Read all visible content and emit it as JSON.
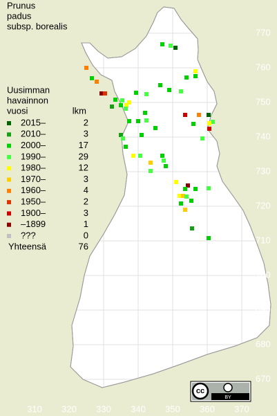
{
  "title": [
    "Prunus",
    "padus",
    "subsp. borealis"
  ],
  "legend": {
    "heading": [
      "Uusimman",
      "havainnon",
      "vuosi"
    ],
    "count_heading": "lkm",
    "entries": [
      {
        "label": "2015–",
        "count": 2,
        "color": "#006400"
      },
      {
        "label": "2010–",
        "count": 3,
        "color": "#16a016"
      },
      {
        "label": "2000–",
        "count": 17,
        "color": "#00d000"
      },
      {
        "label": "1990–",
        "count": 29,
        "color": "#44ff44"
      },
      {
        "label": "1980–",
        "count": 12,
        "color": "#ffff00"
      },
      {
        "label": "1970–",
        "count": 3,
        "color": "#ffcc00"
      },
      {
        "label": "1960–",
        "count": 4,
        "color": "#ff8000"
      },
      {
        "label": "1950–",
        "count": 2,
        "color": "#dd3300"
      },
      {
        "label": "1900–",
        "count": 3,
        "color": "#cc0000"
      },
      {
        "label": "–1899",
        "count": 1,
        "color": "#880000"
      },
      {
        "label": "???",
        "count": 0,
        "color": "#c0c0c0"
      }
    ],
    "total_label": "Yhteensä",
    "total": 76
  },
  "grid": {
    "xticks": [
      310,
      320,
      330,
      340,
      350,
      360,
      370
    ],
    "yticks": [
      670,
      680,
      690,
      700,
      710,
      720,
      730,
      740,
      750,
      760,
      770
    ]
  },
  "points": [
    [
      349.4,
      766.4,
      3
    ],
    [
      350.8,
      765.8,
      0
    ],
    [
      347.0,
      766.8,
      2
    ],
    [
      354.0,
      757.2,
      2
    ],
    [
      356.6,
      759.0,
      4
    ],
    [
      356.6,
      757.6,
      2
    ],
    [
      349.0,
      753.6,
      2
    ],
    [
      346.4,
      755.0,
      2
    ],
    [
      342.4,
      752.4,
      3
    ],
    [
      339.4,
      752.8,
      2
    ],
    [
      352.4,
      753.2,
      3
    ],
    [
      325.0,
      760.0,
      6
    ],
    [
      326.6,
      757.0,
      2
    ],
    [
      328.0,
      756.0,
      6
    ],
    [
      329.4,
      752.6,
      9
    ],
    [
      330.4,
      752.6,
      7
    ],
    [
      332.4,
      748.8,
      1
    ],
    [
      333.4,
      750.8,
      2
    ],
    [
      335.4,
      750.6,
      3
    ],
    [
      337.4,
      750.0,
      4
    ],
    [
      336.6,
      749.2,
      4
    ],
    [
      335.0,
      749.2,
      2
    ],
    [
      336.4,
      748.2,
      3
    ],
    [
      337.4,
      744.6,
      2
    ],
    [
      340.0,
      744.6,
      2
    ],
    [
      342.0,
      747.0,
      2
    ],
    [
      342.4,
      744.8,
      3
    ],
    [
      345.0,
      742.6,
      2
    ],
    [
      341.0,
      740.6,
      2
    ],
    [
      335.0,
      740.6,
      1
    ],
    [
      335.6,
      739.6,
      3
    ],
    [
      336.4,
      737.2,
      2
    ],
    [
      338.6,
      734.6,
      4
    ],
    [
      340.6,
      734.6,
      3
    ],
    [
      343.6,
      732.6,
      5
    ],
    [
      343.6,
      730.2,
      3
    ],
    [
      347.0,
      734.6,
      2
    ],
    [
      347.4,
      733.2,
      3
    ],
    [
      348.0,
      731.6,
      2
    ],
    [
      353.6,
      746.4,
      8
    ],
    [
      357.6,
      746.4,
      6
    ],
    [
      360.4,
      746.4,
      0
    ],
    [
      361.6,
      744.4,
      3
    ],
    [
      360.6,
      744.0,
      4
    ],
    [
      360.6,
      742.4,
      8
    ],
    [
      358.6,
      739.6,
      3
    ],
    [
      356.0,
      743.8,
      2
    ],
    [
      351.0,
      727.0,
      4
    ],
    [
      354.4,
      726.0,
      9
    ],
    [
      353.6,
      725.0,
      2
    ],
    [
      356.6,
      725.0,
      2
    ],
    [
      360.4,
      725.2,
      3
    ],
    [
      352.0,
      723.0,
      4
    ],
    [
      353.0,
      723.0,
      5
    ],
    [
      354.0,
      722.8,
      3
    ],
    [
      355.4,
      721.6,
      2
    ],
    [
      353.6,
      719.0,
      5
    ],
    [
      352.4,
      720.8,
      2
    ],
    [
      355.6,
      713.6,
      1
    ],
    [
      360.4,
      710.8,
      2
    ]
  ],
  "license": [
    "cc",
    "BY"
  ]
}
